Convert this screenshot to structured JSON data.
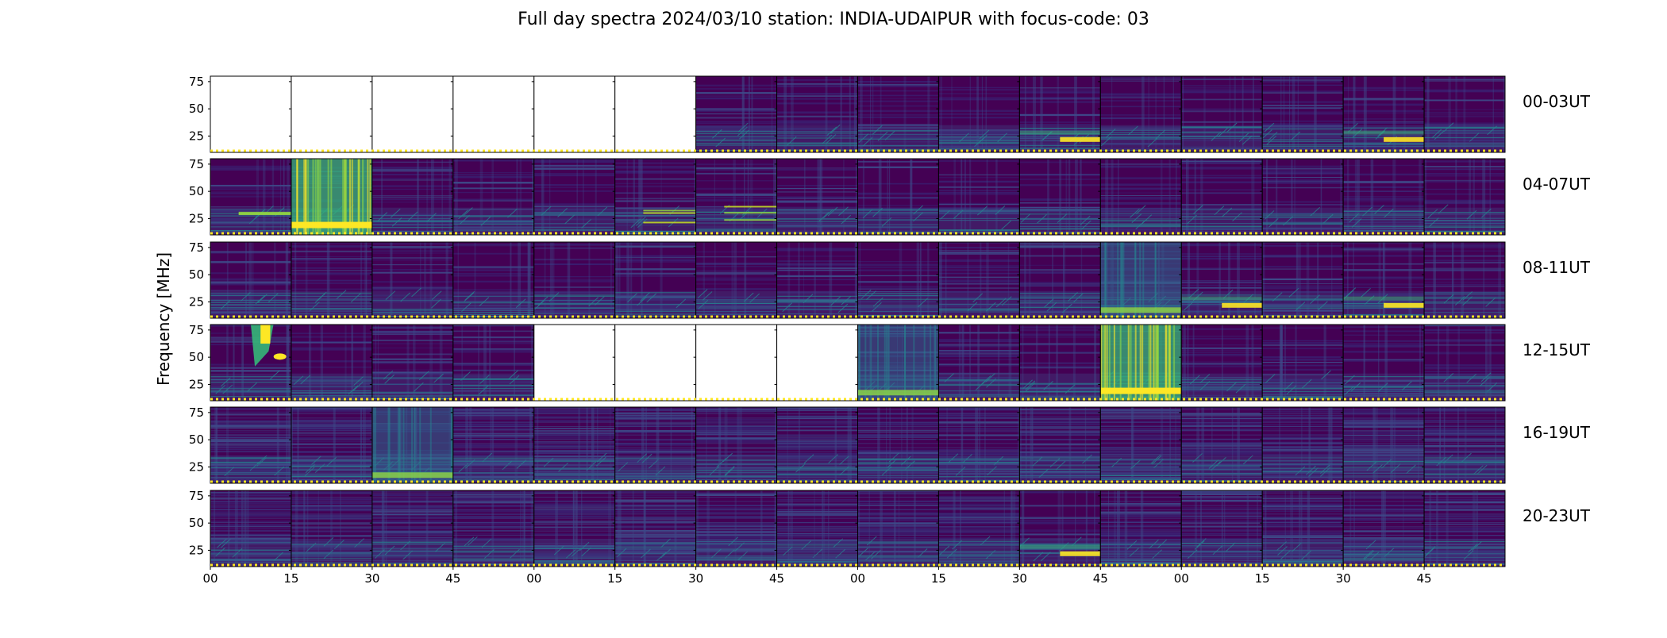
{
  "chart_data": {
    "type": "heatmap",
    "title": "Full day spectra 2024/03/10 station: INDIA-UDAIPUR with focus-code: 03",
    "ylabel": "Frequency [MHz]",
    "xlabel": "",
    "y_ticks": [
      25,
      50,
      75
    ],
    "ylim": [
      10,
      80
    ],
    "x_ticks": [
      "00",
      "15",
      "30",
      "45",
      "00",
      "15",
      "30",
      "45",
      "00",
      "15",
      "30",
      "45",
      "00",
      "15",
      "30",
      "45"
    ],
    "colormap": "viridis",
    "rows": [
      {
        "label": "00-03UT",
        "panels": [
          "empty",
          "empty",
          "empty",
          "empty",
          "empty",
          "empty",
          "quiet",
          "quiet",
          "quiet",
          "quiet",
          "low-band-bright",
          "quiet",
          "quiet",
          "quiet",
          "low-band-bright",
          "quiet"
        ]
      },
      {
        "label": "04-07UT",
        "panels": [
          "lines",
          "broadband-burst",
          "quiet",
          "quiet",
          "quiet",
          "lines",
          "lines",
          "quiet",
          "quiet",
          "quiet",
          "quiet",
          "quiet",
          "quiet",
          "quiet",
          "quiet",
          "quiet"
        ]
      },
      {
        "label": "08-11UT",
        "panels": [
          "quiet",
          "quiet",
          "quiet",
          "quiet",
          "quiet",
          "quiet",
          "quiet",
          "quiet",
          "quiet",
          "quiet",
          "quiet",
          "broadband-mid",
          "low-band-bright",
          "quiet",
          "low-band-bright",
          "quiet"
        ]
      },
      {
        "label": "12-15UT",
        "panels": [
          "burst-high",
          "quiet",
          "quiet",
          "quiet",
          "empty",
          "empty",
          "empty",
          "empty",
          "broadband-mid",
          "quiet",
          "quiet",
          "broadband-burst",
          "quiet",
          "quiet",
          "quiet",
          "quiet"
        ]
      },
      {
        "label": "16-19UT",
        "panels": [
          "striped",
          "striped",
          "broadband-mid",
          "striped",
          "striped",
          "striped",
          "striped",
          "striped",
          "striped",
          "striped",
          "striped",
          "striped",
          "striped",
          "striped",
          "striped",
          "striped"
        ]
      },
      {
        "label": "20-23UT",
        "panels": [
          "striped",
          "striped",
          "striped",
          "striped",
          "striped",
          "striped",
          "striped",
          "striped",
          "striped",
          "striped",
          "low-band-bright",
          "striped",
          "striped",
          "striped",
          "striped",
          "striped"
        ]
      }
    ]
  }
}
